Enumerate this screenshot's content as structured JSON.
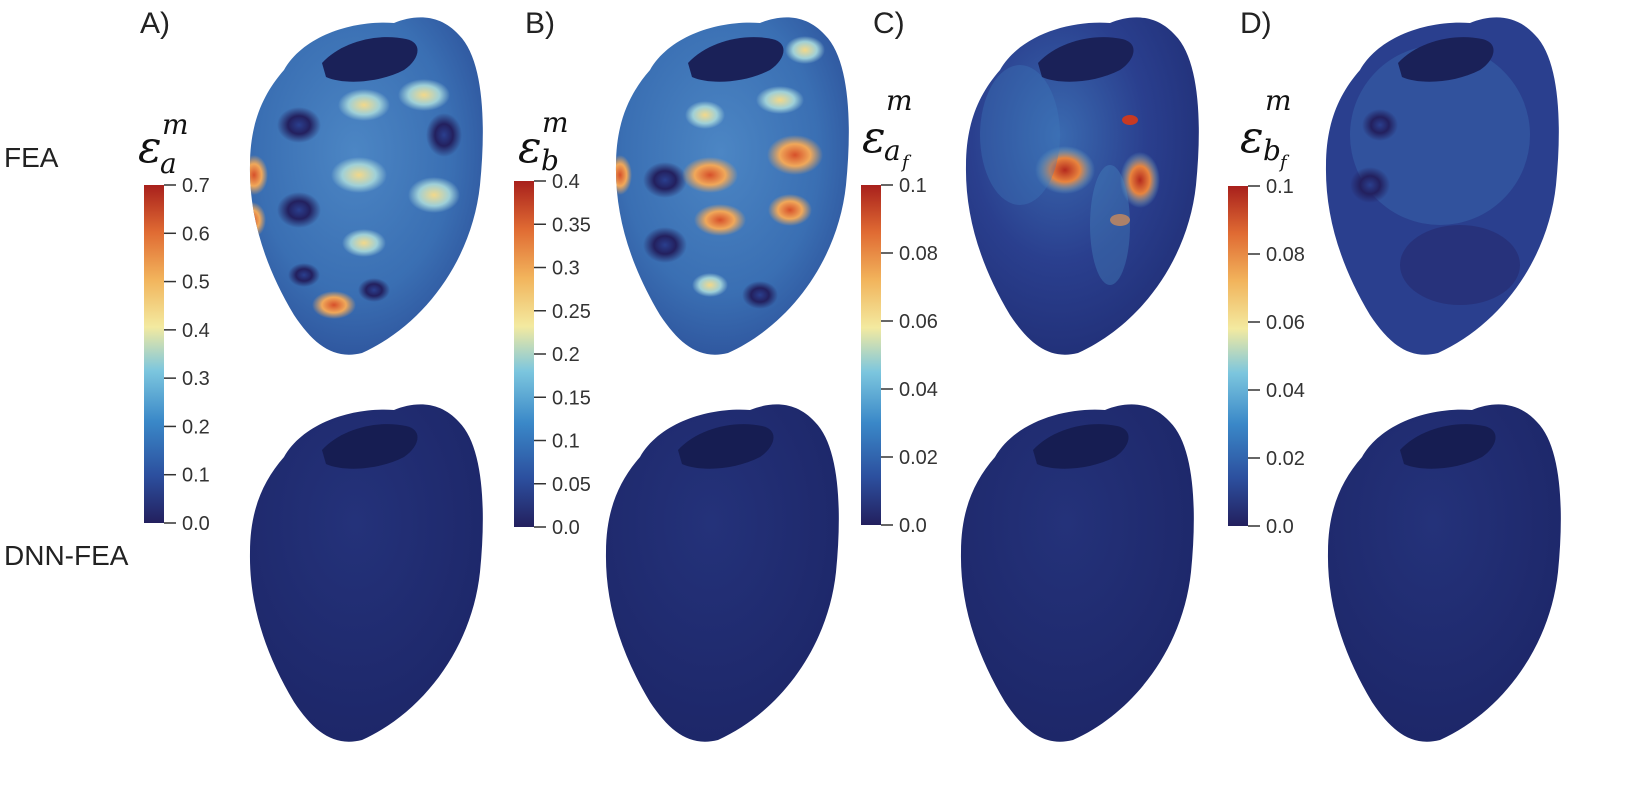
{
  "rows": [
    {
      "id": "fea",
      "label": "FEA"
    },
    {
      "id": "dnn",
      "label": "DNN-FEA"
    }
  ],
  "panels": [
    {
      "id": "A",
      "label": "A)",
      "symbol": {
        "base": "ε",
        "sup": "m",
        "sub": "a",
        "subsub": ""
      },
      "colorbar": {
        "ticks": [
          "0.7",
          "0.6",
          "0.5",
          "0.4",
          "0.3",
          "0.2",
          "0.1",
          "0.0"
        ],
        "min": 0,
        "max": 0.7
      }
    },
    {
      "id": "B",
      "label": "B)",
      "symbol": {
        "base": "ε",
        "sup": "m",
        "sub": "b",
        "subsub": ""
      },
      "colorbar": {
        "ticks": [
          "0.4",
          "0.35",
          "0.3",
          "0.25",
          "0.2",
          "0.15",
          "0.1",
          "0.05",
          "0.0"
        ],
        "min": 0,
        "max": 0.4
      }
    },
    {
      "id": "C",
      "label": "C)",
      "symbol": {
        "base": "ε",
        "sup": "m",
        "sub": "a",
        "subsub": "f"
      },
      "colorbar": {
        "ticks": [
          "0.1",
          "0.08",
          "0.06",
          "0.04",
          "0.02",
          "0.0"
        ],
        "min": 0,
        "max": 0.1
      }
    },
    {
      "id": "D",
      "label": "D)",
      "symbol": {
        "base": "ε",
        "sup": "m",
        "sub": "b",
        "subsub": "f"
      },
      "colorbar": {
        "ticks": [
          "0.1",
          "0.08",
          "0.06",
          "0.04",
          "0.02",
          "0.0"
        ],
        "min": 0,
        "max": 0.1
      }
    }
  ],
  "colormap": [
    "#23205e",
    "#2c4f9e",
    "#3a88c8",
    "#7cc6de",
    "#f3eaa0",
    "#f2b45c",
    "#e06b33",
    "#a8201c"
  ],
  "heart_base_color": "#1f2c72"
}
